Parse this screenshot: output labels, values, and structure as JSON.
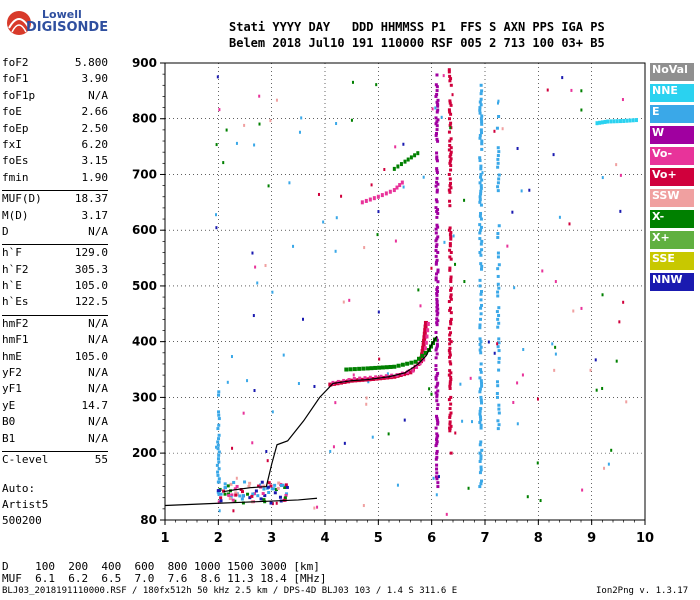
{
  "logo": {
    "line1": "Lowell",
    "line2": "DIGISONDE"
  },
  "header": {
    "line1": "Stati YYYY DAY   DDD HHMMSS P1  FFS S AXN PPS IGA PS",
    "line2": "Belem 2018 Jul10 191 110000 RSF 005 2 713 100 03+ B5"
  },
  "params": [
    {
      "name": "foF2",
      "value": "5.800"
    },
    {
      "name": "foF1",
      "value": "3.90"
    },
    {
      "name": "foF1p",
      "value": "N/A"
    },
    {
      "name": "foE",
      "value": "2.66"
    },
    {
      "name": "foEp",
      "value": "2.50"
    },
    {
      "name": "fxI",
      "value": "6.20"
    },
    {
      "name": "foEs",
      "value": "3.15"
    },
    {
      "name": "fmin",
      "value": "1.90"
    },
    {
      "name": "MUF(D)",
      "value": "18.37",
      "sep": true
    },
    {
      "name": "M(D)",
      "value": "3.17"
    },
    {
      "name": "D",
      "value": "N/A"
    },
    {
      "name": "h`F",
      "value": "129.0",
      "sep": true
    },
    {
      "name": "h`F2",
      "value": "305.3"
    },
    {
      "name": "h`E",
      "value": "105.0"
    },
    {
      "name": "h`Es",
      "value": "122.5"
    },
    {
      "name": "hmF2",
      "value": "N/A",
      "sep": true
    },
    {
      "name": "hmF1",
      "value": "N/A"
    },
    {
      "name": "hmE",
      "value": "105.0"
    },
    {
      "name": "yF2",
      "value": "N/A"
    },
    {
      "name": "yF1",
      "value": "N/A"
    },
    {
      "name": "yE",
      "value": "14.7"
    },
    {
      "name": "B0",
      "value": "N/A"
    },
    {
      "name": "B1",
      "value": "N/A"
    },
    {
      "name": "C-level",
      "value": "55",
      "sep": true
    }
  ],
  "auto": {
    "line1": "Auto:",
    "line2": "Artist5",
    "line3": "500200"
  },
  "legend": [
    {
      "label": "NoVal",
      "color": "#909090"
    },
    {
      "label": "NNE",
      "color": "#2ad2f0"
    },
    {
      "label": "E",
      "color": "#3aa8e8"
    },
    {
      "label": "W",
      "color": "#a000a0"
    },
    {
      "label": "Vo-",
      "color": "#e8339a"
    },
    {
      "label": "Vo+",
      "color": "#d0003c"
    },
    {
      "label": "SSW",
      "color": "#f0a0a0"
    },
    {
      "label": "X-",
      "color": "#008000"
    },
    {
      "label": "X+",
      "color": "#60b040"
    },
    {
      "label": "SSE",
      "color": "#c8c800"
    },
    {
      "label": "NNW",
      "color": "#1a1ab0"
    }
  ],
  "bottom": {
    "d_line": "D    100  200  400  600  800 1000 1500 3000 [km]",
    "muf_line": "MUF  6.1  6.2  6.5  7.0  7.6  8.6 11.3 18.4 [MHz]"
  },
  "footer": {
    "left": "BLJ03_2018191110000.RSF / 180fx512h 50 kHz 2.5 km / DPS-4D BLJ03 103 / 1.4 S 311.6 E",
    "right": "Ion2Png v. 1.3.17"
  },
  "chart_data": {
    "type": "scatter",
    "title": "",
    "xlabel": "",
    "ylabel": "",
    "xlim": [
      1,
      10
    ],
    "ylim": [
      80,
      900
    ],
    "x_ticks": [
      1,
      2,
      3,
      4,
      5,
      6,
      7,
      8,
      9,
      10
    ],
    "y_ticks": [
      80,
      200,
      300,
      400,
      500,
      600,
      700,
      800,
      900
    ],
    "grid": true,
    "legend_position": "right",
    "trace_E": [
      [
        1.0,
        106
      ],
      [
        1.5,
        108
      ],
      [
        2.0,
        110
      ],
      [
        2.5,
        112
      ],
      [
        3.0,
        114
      ],
      [
        3.5,
        116
      ],
      [
        3.85,
        119
      ]
    ],
    "trace_F": [
      [
        2.1,
        131
      ],
      [
        2.3,
        134
      ],
      [
        2.6,
        138
      ],
      [
        2.9,
        140
      ],
      [
        3.0,
        180
      ],
      [
        3.1,
        215
      ],
      [
        3.3,
        222
      ],
      [
        3.6,
        258
      ],
      [
        3.9,
        300
      ],
      [
        4.15,
        325
      ],
      [
        4.5,
        330
      ],
      [
        4.8,
        332
      ],
      [
        5.2,
        337
      ],
      [
        5.5,
        344
      ],
      [
        5.75,
        360
      ],
      [
        5.9,
        375
      ],
      [
        6.0,
        395
      ],
      [
        6.1,
        410
      ]
    ],
    "o_trace_F": [
      [
        4.1,
        323
      ],
      [
        4.5,
        330
      ],
      [
        4.9,
        333
      ],
      [
        5.3,
        337
      ],
      [
        5.6,
        345
      ],
      [
        5.8,
        365
      ],
      [
        5.85,
        395
      ],
      [
        5.9,
        440
      ]
    ],
    "x_trace_F": [
      [
        4.4,
        350
      ],
      [
        4.8,
        352
      ],
      [
        5.3,
        355
      ],
      [
        5.7,
        364
      ],
      [
        5.95,
        385
      ],
      [
        6.1,
        410
      ]
    ],
    "multihop_o": [
      [
        4.7,
        650
      ],
      [
        5.0,
        660
      ],
      [
        5.3,
        672
      ],
      [
        5.5,
        690
      ]
    ],
    "multihop_x": [
      [
        5.3,
        710
      ],
      [
        5.5,
        723
      ],
      [
        5.8,
        742
      ]
    ],
    "vertical_line_W": {
      "x": 6.1,
      "y": [
        140,
        880
      ]
    },
    "vertical_line_Vo": {
      "x": 6.35,
      "y": [
        200,
        890
      ]
    },
    "vertical_line_E1": {
      "x": 6.92,
      "y": [
        140,
        860
      ]
    },
    "vertical_line_E2": {
      "x": 7.25,
      "y": [
        230,
        810
      ]
    },
    "high_cluster": [
      [
        9.1,
        792
      ],
      [
        9.3,
        795
      ],
      [
        9.6,
        796
      ],
      [
        9.9,
        798
      ]
    ],
    "vertical_line_Es": {
      "x": 2.0,
      "y": [
        130,
        310
      ]
    }
  }
}
